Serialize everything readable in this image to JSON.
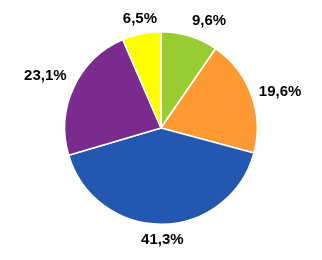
{
  "chart_data": {
    "type": "pie",
    "values": [
      9.6,
      19.6,
      41.3,
      23.1,
      6.5
    ],
    "value_labels": [
      "9,6%",
      "19,6%",
      "41,3%",
      "23,1%",
      "6,5%"
    ],
    "colors": [
      "#99cc33",
      "#ff9933",
      "#2457b0",
      "#7b2a8e",
      "#ffff00"
    ],
    "data_labels": true
  }
}
